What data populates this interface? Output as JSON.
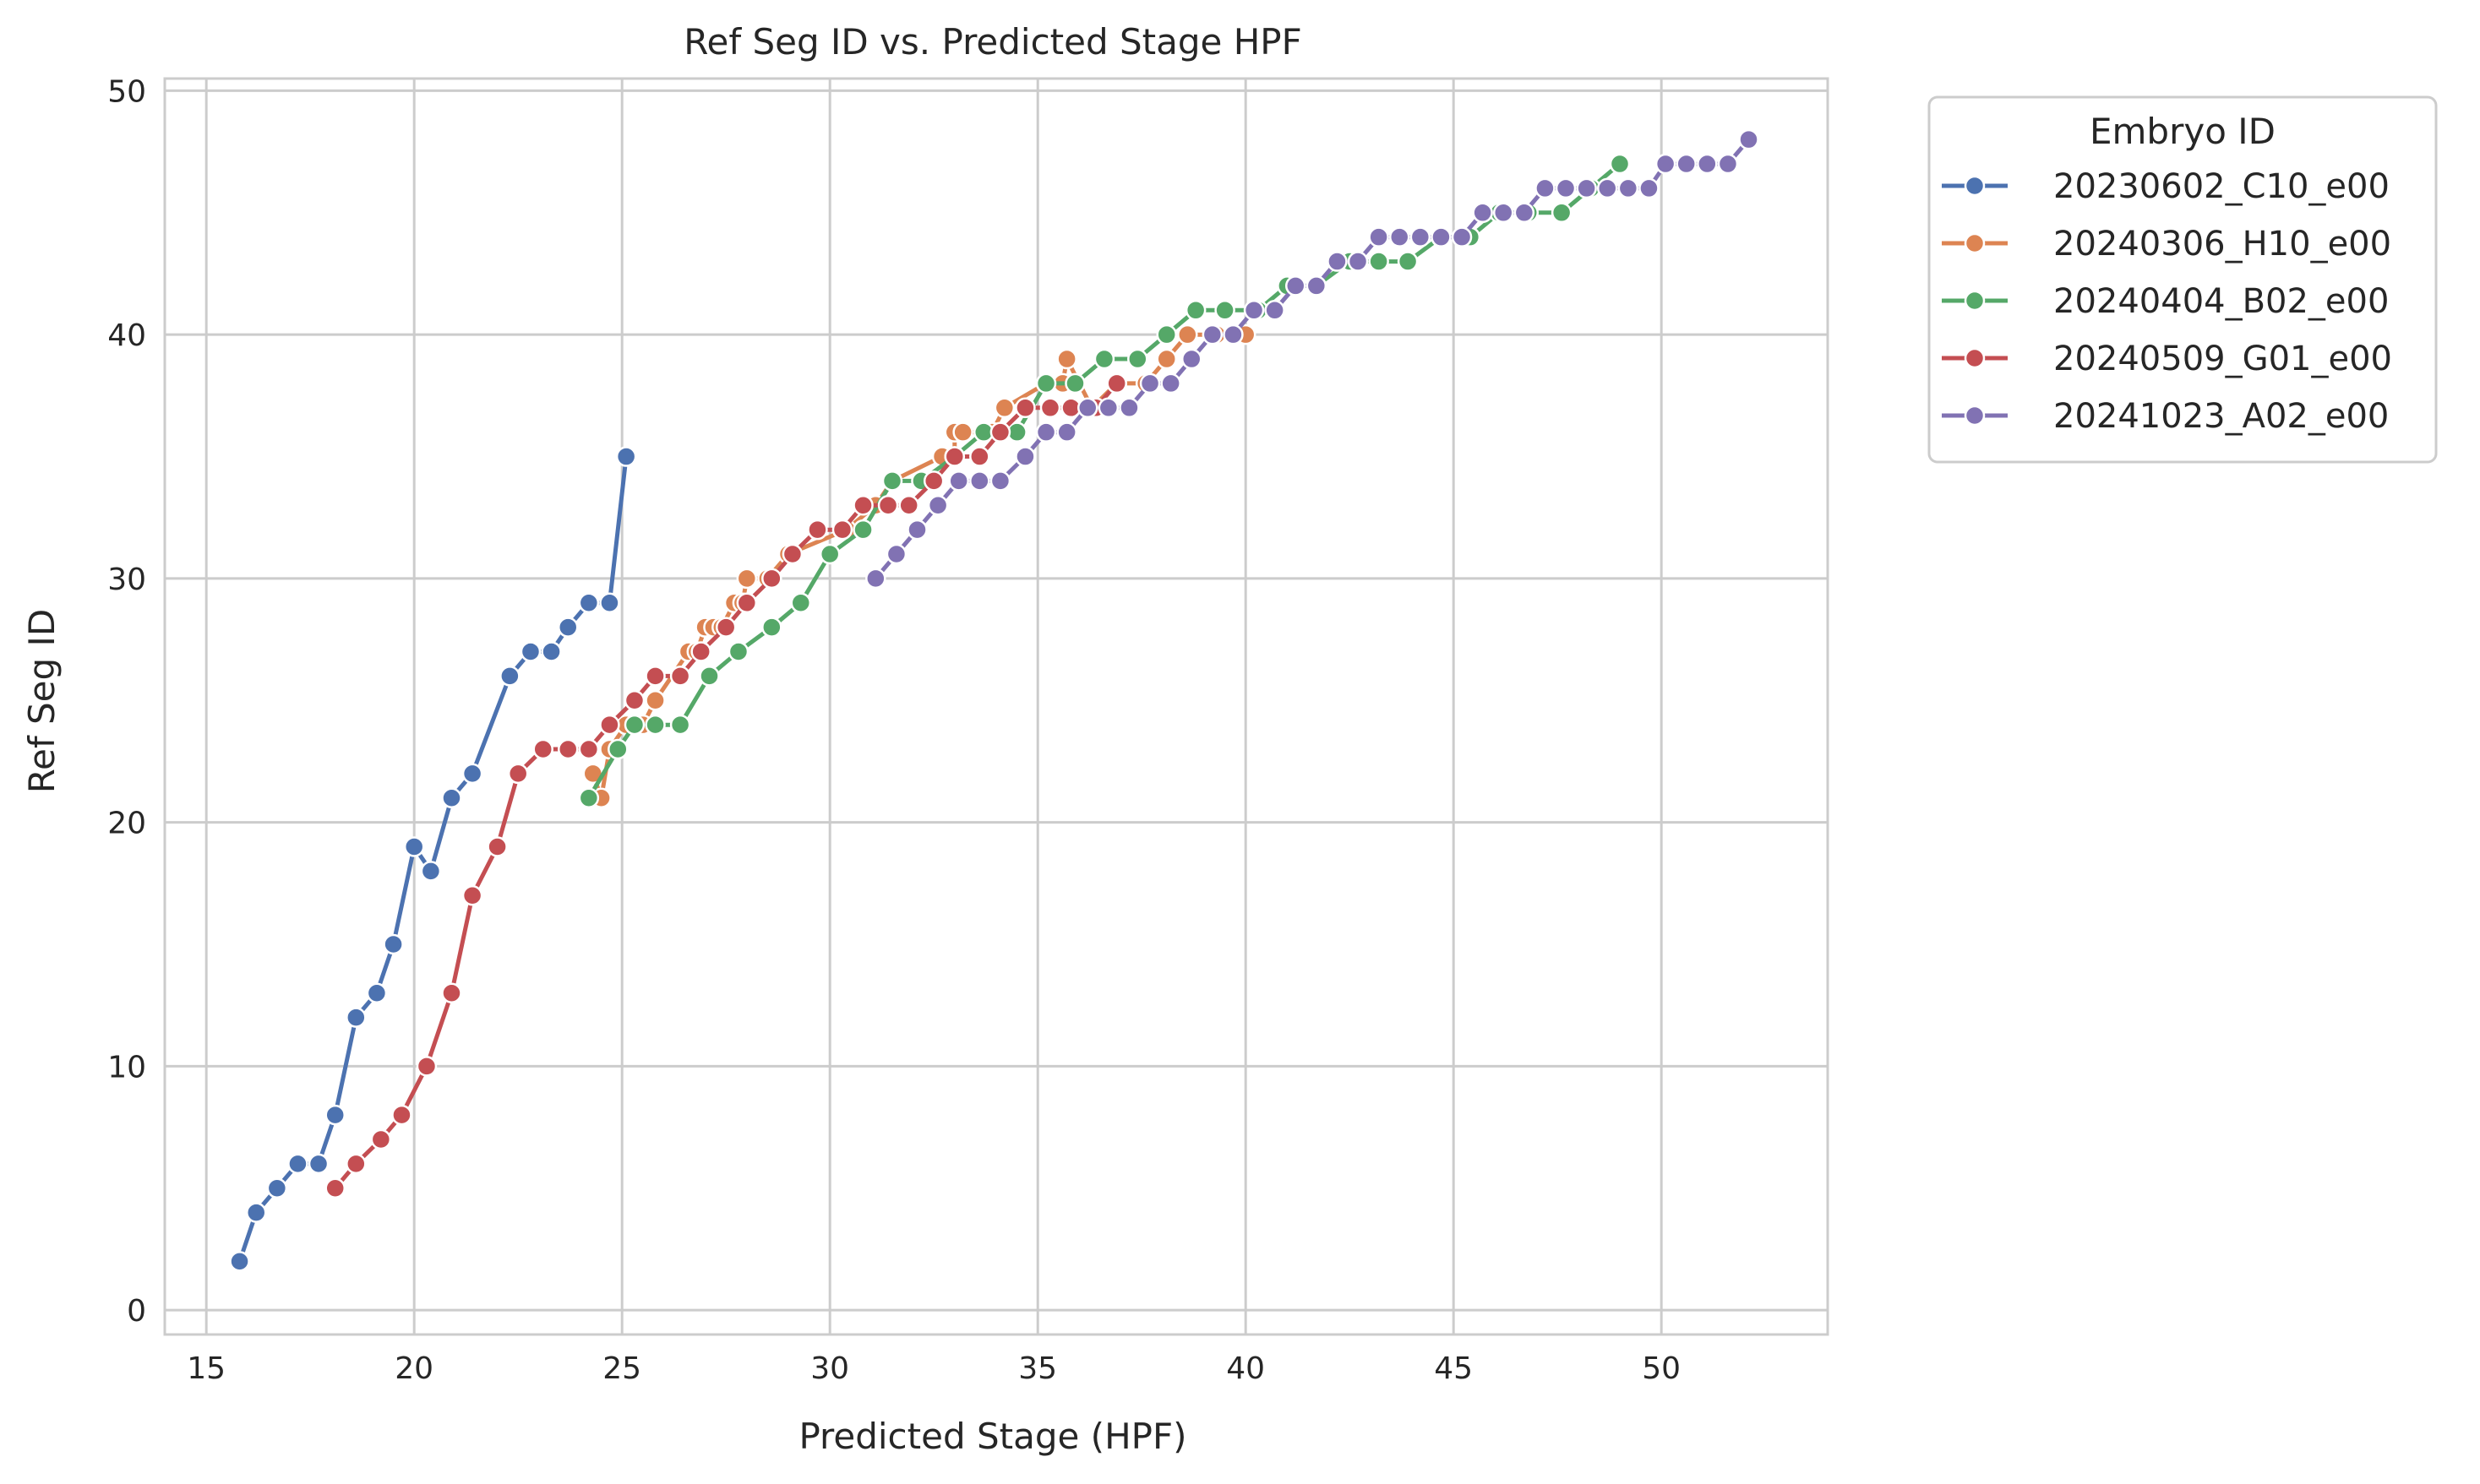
{
  "chart_data": {
    "type": "line",
    "title": "Ref Seg ID vs. Predicted Stage HPF",
    "xlabel": "Predicted Stage (HPF)",
    "ylabel": "Ref Seg ID",
    "xlim": [
      14.0,
      54.0
    ],
    "ylim": [
      -1,
      50.5
    ],
    "xticks": [
      15,
      20,
      25,
      30,
      35,
      40,
      45,
      50
    ],
    "yticks": [
      0,
      10,
      20,
      30,
      40,
      50
    ],
    "grid": true,
    "legend": {
      "title": "Embryo ID",
      "position": "outside-right"
    },
    "series": [
      {
        "name": "20230602_C10_e00",
        "color": "#4c72b0",
        "points": [
          [
            15.8,
            2
          ],
          [
            16.2,
            4
          ],
          [
            16.7,
            5
          ],
          [
            17.2,
            6
          ],
          [
            17.7,
            6
          ],
          [
            18.1,
            8
          ],
          [
            18.6,
            12
          ],
          [
            19.1,
            13
          ],
          [
            19.5,
            15
          ],
          [
            20.0,
            19
          ],
          [
            20.4,
            18
          ],
          [
            20.9,
            21
          ],
          [
            21.4,
            22
          ],
          [
            22.3,
            26
          ],
          [
            22.8,
            27
          ],
          [
            23.3,
            27
          ],
          [
            23.7,
            28
          ],
          [
            24.2,
            29
          ],
          [
            24.7,
            29
          ],
          [
            25.1,
            35
          ]
        ]
      },
      {
        "name": "20240306_H10_e00",
        "color": "#dd8452",
        "points": [
          [
            24.3,
            22
          ],
          [
            24.5,
            21
          ],
          [
            24.7,
            23
          ],
          [
            25.1,
            24
          ],
          [
            25.5,
            24
          ],
          [
            25.8,
            25
          ],
          [
            26.6,
            27
          ],
          [
            26.8,
            27
          ],
          [
            27.0,
            28
          ],
          [
            27.2,
            28
          ],
          [
            27.4,
            28
          ],
          [
            27.7,
            29
          ],
          [
            27.9,
            29
          ],
          [
            28.0,
            30
          ],
          [
            28.5,
            30
          ],
          [
            29.0,
            31
          ],
          [
            30.4,
            32
          ],
          [
            31.1,
            33
          ],
          [
            31.5,
            34
          ],
          [
            32.7,
            35
          ],
          [
            33.0,
            35
          ],
          [
            33.0,
            36
          ],
          [
            33.2,
            36
          ],
          [
            33.9,
            36
          ],
          [
            34.2,
            37
          ],
          [
            35.2,
            38
          ],
          [
            35.6,
            38
          ],
          [
            35.7,
            39
          ],
          [
            36.3,
            37
          ],
          [
            36.9,
            38
          ],
          [
            37.6,
            38
          ],
          [
            38.1,
            39
          ],
          [
            38.6,
            40
          ],
          [
            39.3,
            40
          ],
          [
            40.0,
            40
          ]
        ]
      },
      {
        "name": "20240404_B02_e00",
        "color": "#55a868",
        "points": [
          [
            24.2,
            21
          ],
          [
            24.9,
            23
          ],
          [
            25.3,
            24
          ],
          [
            25.8,
            24
          ],
          [
            26.4,
            24
          ],
          [
            27.1,
            26
          ],
          [
            27.8,
            27
          ],
          [
            28.6,
            28
          ],
          [
            29.3,
            29
          ],
          [
            30.0,
            31
          ],
          [
            30.8,
            32
          ],
          [
            31.5,
            34
          ],
          [
            32.2,
            34
          ],
          [
            33.0,
            35
          ],
          [
            33.7,
            36
          ],
          [
            34.5,
            36
          ],
          [
            35.2,
            38
          ],
          [
            35.9,
            38
          ],
          [
            36.6,
            39
          ],
          [
            37.4,
            39
          ],
          [
            38.1,
            40
          ],
          [
            38.8,
            41
          ],
          [
            39.5,
            41
          ],
          [
            40.3,
            41
          ],
          [
            41.0,
            42
          ],
          [
            41.7,
            42
          ],
          [
            42.5,
            43
          ],
          [
            43.2,
            43
          ],
          [
            43.9,
            43
          ],
          [
            44.7,
            44
          ],
          [
            45.4,
            44
          ],
          [
            46.1,
            45
          ],
          [
            46.8,
            45
          ],
          [
            47.6,
            45
          ],
          [
            48.3,
            46
          ],
          [
            49.0,
            47
          ]
        ]
      },
      {
        "name": "20240509_G01_e00",
        "color": "#c44e52",
        "points": [
          [
            18.1,
            5
          ],
          [
            18.6,
            6
          ],
          [
            19.2,
            7
          ],
          [
            19.7,
            8
          ],
          [
            20.3,
            10
          ],
          [
            20.9,
            13
          ],
          [
            21.4,
            17
          ],
          [
            22.0,
            19
          ],
          [
            22.5,
            22
          ],
          [
            23.1,
            23
          ],
          [
            23.7,
            23
          ],
          [
            24.2,
            23
          ],
          [
            24.7,
            24
          ],
          [
            25.3,
            25
          ],
          [
            25.8,
            26
          ],
          [
            26.4,
            26
          ],
          [
            26.9,
            27
          ],
          [
            27.5,
            28
          ],
          [
            28.0,
            29
          ],
          [
            28.6,
            30
          ],
          [
            29.1,
            31
          ],
          [
            29.7,
            32
          ],
          [
            30.3,
            32
          ],
          [
            30.8,
            33
          ],
          [
            31.4,
            33
          ],
          [
            31.9,
            33
          ],
          [
            32.5,
            34
          ],
          [
            33.0,
            35
          ],
          [
            33.6,
            35
          ],
          [
            34.1,
            36
          ],
          [
            34.7,
            37
          ],
          [
            35.3,
            37
          ],
          [
            35.8,
            37
          ],
          [
            36.4,
            37
          ],
          [
            36.9,
            38
          ]
        ]
      },
      {
        "name": "20241023_A02_e00",
        "color": "#8172b3",
        "points": [
          [
            31.1,
            30
          ],
          [
            31.6,
            31
          ],
          [
            32.1,
            32
          ],
          [
            32.6,
            33
          ],
          [
            33.1,
            34
          ],
          [
            33.6,
            34
          ],
          [
            34.1,
            34
          ],
          [
            34.7,
            35
          ],
          [
            35.2,
            36
          ],
          [
            35.7,
            36
          ],
          [
            36.2,
            37
          ],
          [
            36.7,
            37
          ],
          [
            37.2,
            37
          ],
          [
            37.7,
            38
          ],
          [
            38.2,
            38
          ],
          [
            38.7,
            39
          ],
          [
            39.2,
            40
          ],
          [
            39.7,
            40
          ],
          [
            40.2,
            41
          ],
          [
            40.7,
            41
          ],
          [
            41.2,
            42
          ],
          [
            41.7,
            42
          ],
          [
            42.2,
            43
          ],
          [
            42.7,
            43
          ],
          [
            43.2,
            44
          ],
          [
            43.7,
            44
          ],
          [
            44.2,
            44
          ],
          [
            44.7,
            44
          ],
          [
            45.2,
            44
          ],
          [
            45.7,
            45
          ],
          [
            46.2,
            45
          ],
          [
            46.7,
            45
          ],
          [
            47.2,
            46
          ],
          [
            47.7,
            46
          ],
          [
            48.2,
            46
          ],
          [
            48.7,
            46
          ],
          [
            49.2,
            46
          ],
          [
            49.7,
            46
          ],
          [
            50.1,
            47
          ],
          [
            50.6,
            47
          ],
          [
            51.1,
            47
          ],
          [
            51.6,
            47
          ],
          [
            52.1,
            48
          ]
        ]
      }
    ]
  }
}
